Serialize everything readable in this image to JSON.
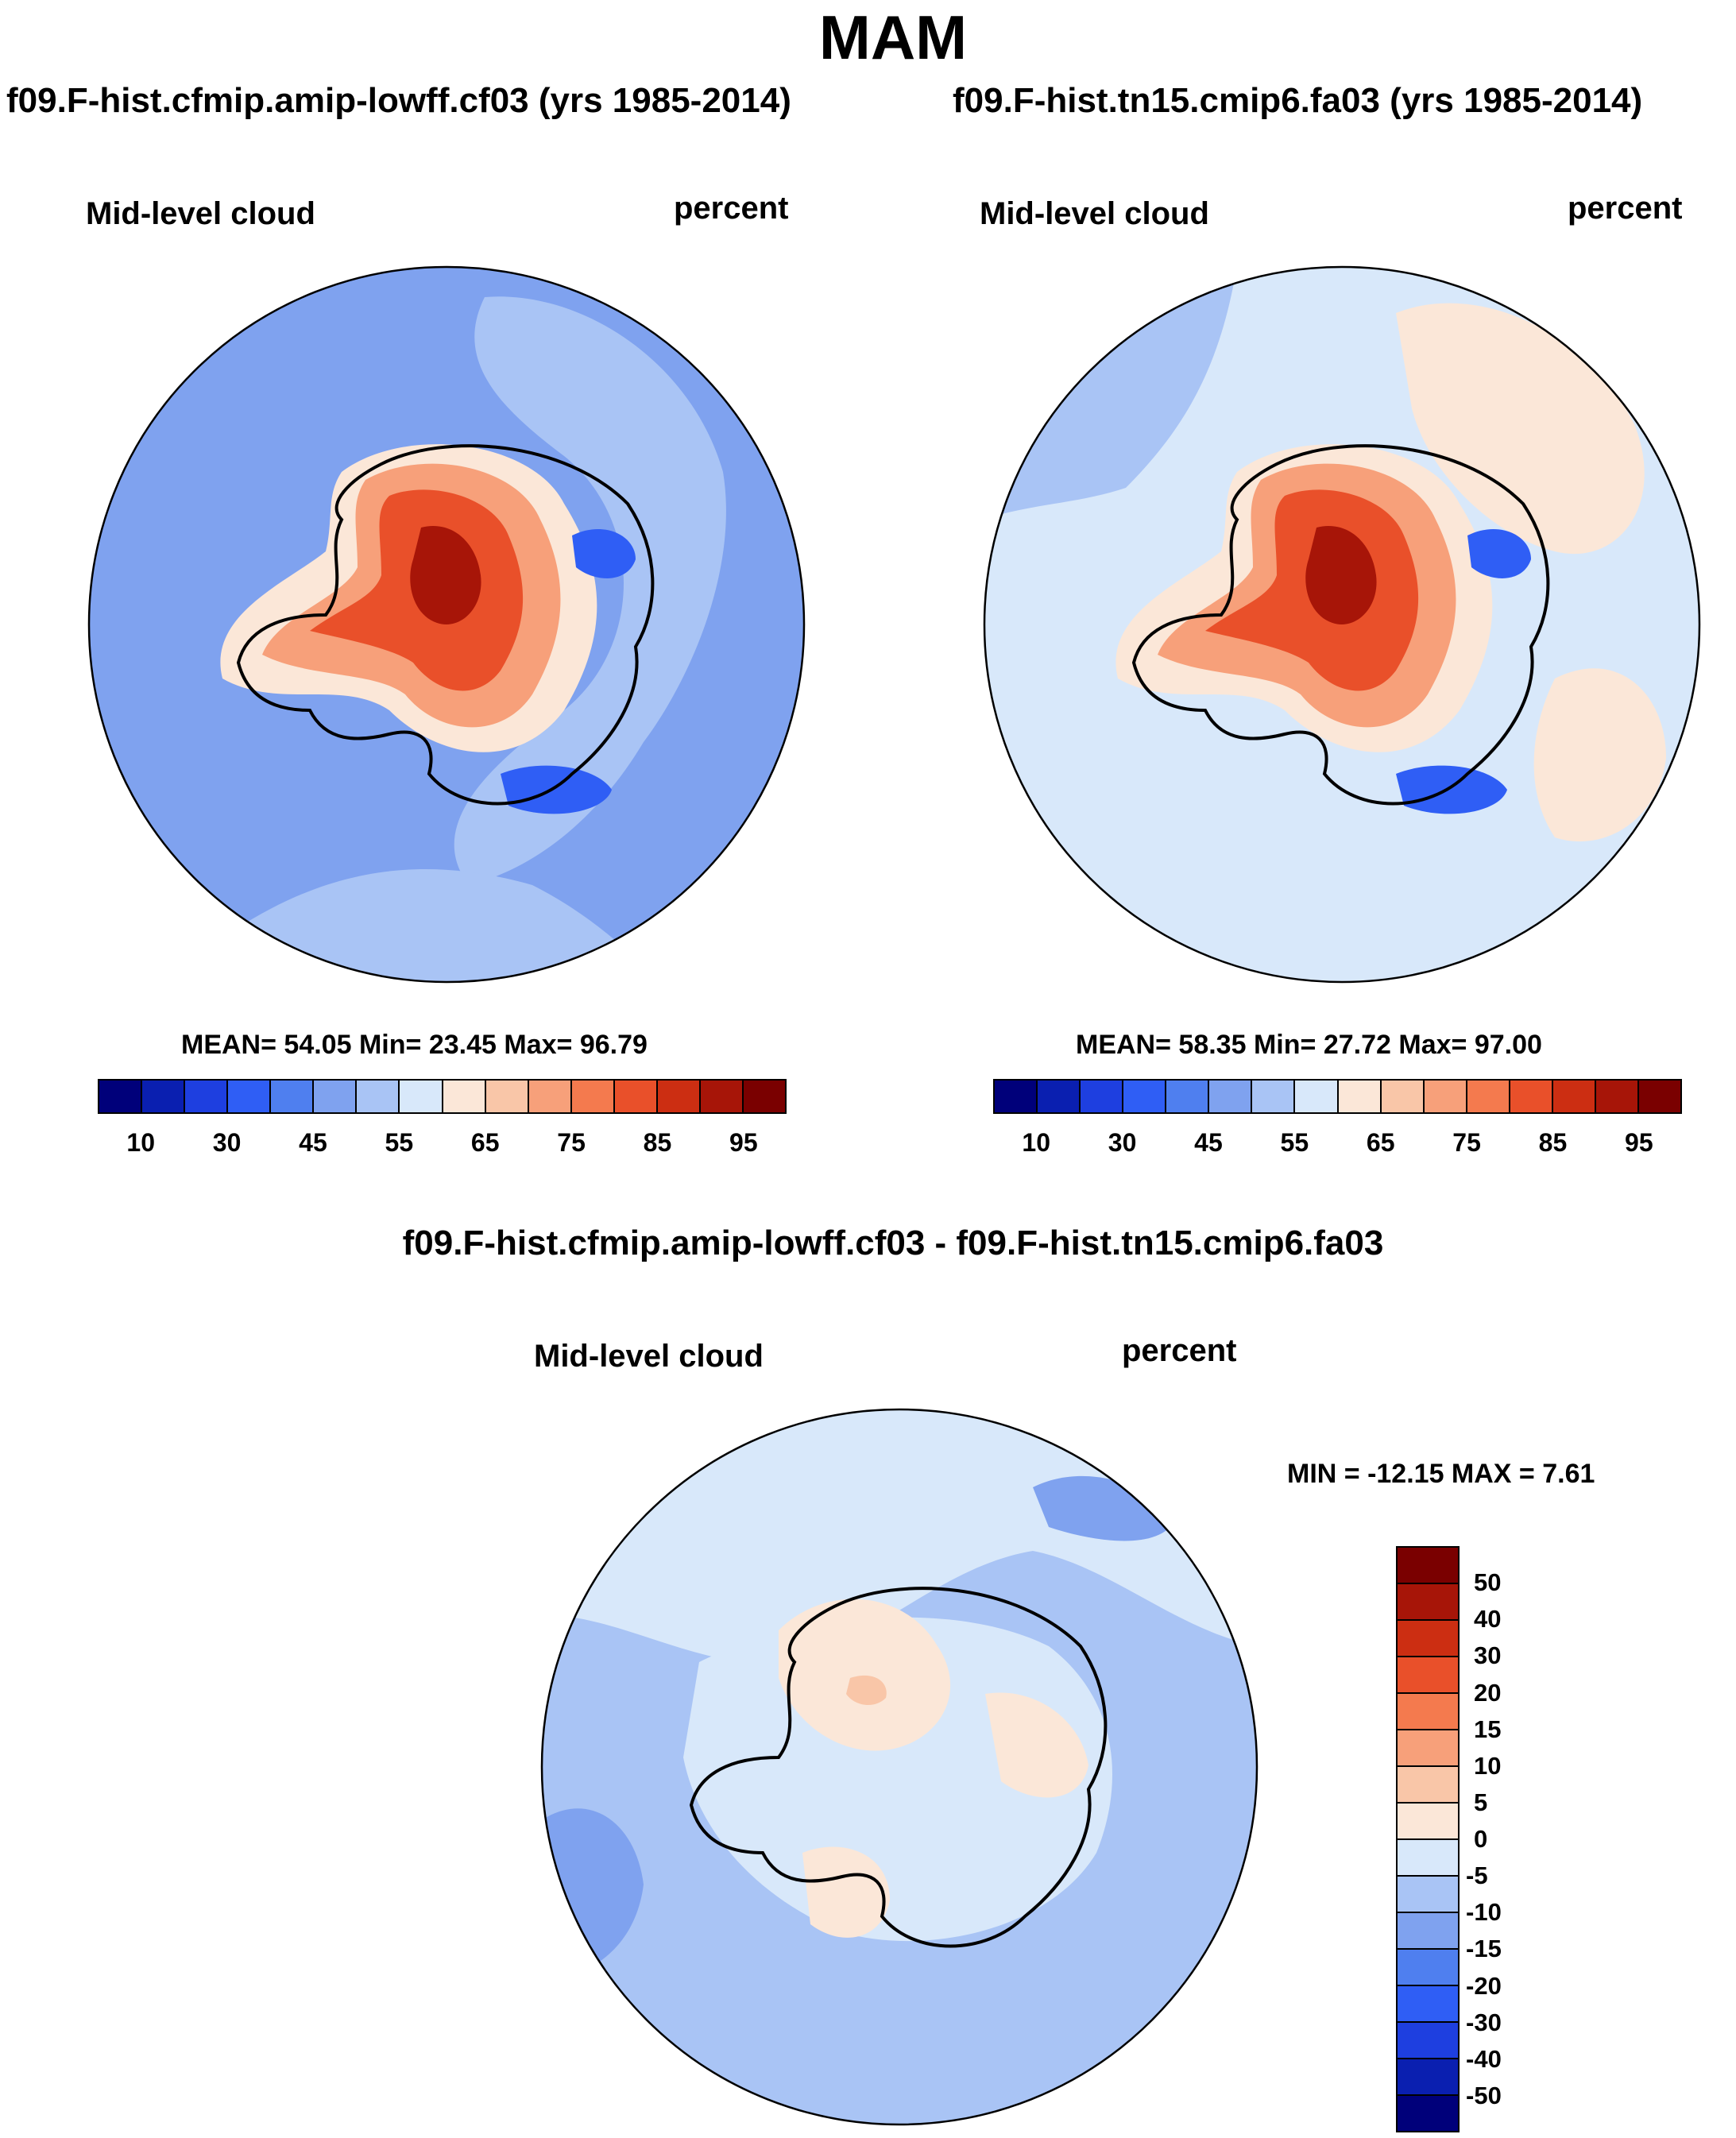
{
  "figure": {
    "title": "MAM"
  },
  "panels": [
    {
      "title": "f09.F-hist.cfmip.amip-lowff.cf03 (yrs 1985-2014)",
      "variable_label": "Mid-level cloud",
      "units_label": "percent",
      "stats": {
        "mean_label": "MEAN=",
        "mean": "54.05",
        "min_label": "Min=",
        "min": "23.45",
        "max_label": "Max=",
        "max": "96.79"
      }
    },
    {
      "title": "f09.F-hist.tn15.cmip6.fa03 (yrs 1985-2014)",
      "variable_label": "Mid-level cloud",
      "units_label": "percent",
      "stats": {
        "mean_label": "MEAN=",
        "mean": "58.35",
        "min_label": "Min=",
        "min": "27.72",
        "max_label": "Max=",
        "max": "97.00"
      }
    },
    {
      "title": "f09.F-hist.cfmip.amip-lowff.cf03 - f09.F-hist.tn15.cmip6.fa03",
      "variable_label": "Mid-level cloud",
      "units_label": "percent",
      "stats": {
        "text": "MIN = -12.15 MAX =   7.61"
      }
    }
  ],
  "colorbar_abs": {
    "colors": [
      "#00007a",
      "#0a1fb0",
      "#1e3fe0",
      "#2f5ef5",
      "#4f7fef",
      "#7fa2ef",
      "#a9c4f5",
      "#d8e8fa",
      "#fbe7d8",
      "#f9c6a8",
      "#f7a07a",
      "#f47a4e",
      "#e9502a",
      "#cc2e12",
      "#a71508",
      "#7a0000"
    ],
    "labels": [
      "10",
      "30",
      "45",
      "55",
      "65",
      "75",
      "85",
      "95"
    ]
  },
  "colorbar_diff": {
    "colors": [
      "#7a0000",
      "#a71508",
      "#cc2e12",
      "#e9502a",
      "#f47a4e",
      "#f7a07a",
      "#f9c6a8",
      "#fbe7d8",
      "#d8e8fa",
      "#a9c4f5",
      "#7fa2ef",
      "#4f7fef",
      "#2f5ef5",
      "#1e3fe0",
      "#0a1fb0",
      "#00007a"
    ],
    "labels": [
      "50",
      "40",
      "30",
      "20",
      "15",
      "10",
      "5",
      "0",
      "-5",
      "-10",
      "-15",
      "-20",
      "-30",
      "-40",
      "-50"
    ]
  },
  "map_colors": {
    "c45": "#4f7fef",
    "c50": "#7fa2ef",
    "c55": "#a9c4f5",
    "c60": "#d8e8fa",
    "c65": "#fbe7d8",
    "c70": "#f9c6a8",
    "c75": "#f7a07a",
    "c80": "#f47a4e",
    "c85": "#e9502a",
    "c90": "#cc2e12",
    "c95": "#a71508",
    "c35": "#2f5ef5"
  }
}
